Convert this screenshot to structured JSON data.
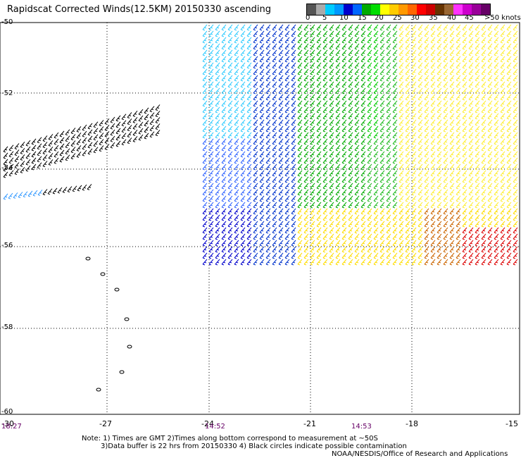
{
  "title": "Rapidscat Corrected Winds(12.5KM) 20150330 ascending",
  "scale": {
    "colors": [
      "#555555",
      "#aaaaaa",
      "#00ccff",
      "#0099ff",
      "#0000cc",
      "#0066ff",
      "#00aa00",
      "#00dd00",
      "#ffff00",
      "#ffcc00",
      "#ff9900",
      "#ff6600",
      "#ff0000",
      "#cc0000",
      "#663300",
      "#996633",
      "#ff33ff",
      "#cc00cc",
      "#990099",
      "#660066"
    ],
    "labels": [
      "0",
      "5",
      "10",
      "15",
      "20",
      "25",
      "30",
      "35",
      "40",
      "45",
      ">50 knots"
    ]
  },
  "axes": {
    "y_labels": [
      "-50",
      "-52",
      "-54",
      "-56",
      "-58",
      "-60"
    ],
    "x_labels": [
      "-30",
      "-27",
      "-24",
      "-21",
      "-18",
      "-15"
    ],
    "times": [
      "18:27",
      "14:52",
      "14:53"
    ]
  },
  "notes": {
    "line1": "Note: 1) Times are GMT 2)Times along bottom correspond to measurement at ~50S",
    "line2": "3)Data buffer is 22 hrs from 20150330 4) Black circles indicate possible contamination",
    "line3": "NOAA/NESDIS/Office of Research and Applications"
  }
}
